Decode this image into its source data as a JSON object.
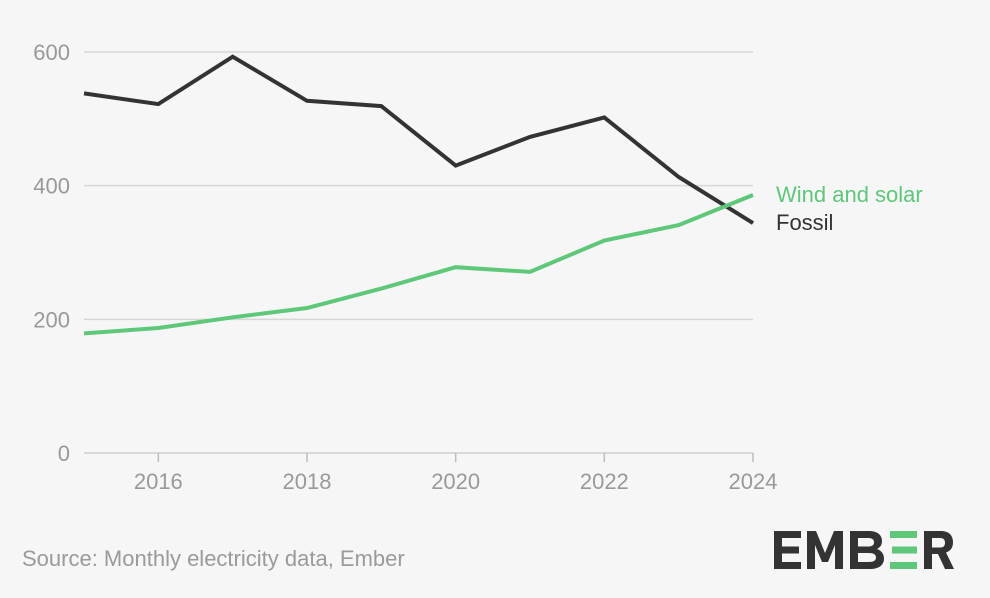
{
  "chart_data": {
    "type": "line",
    "title": "",
    "xlabel": "",
    "ylabel": "",
    "x": [
      2015,
      2016,
      2017,
      2018,
      2019,
      2020,
      2021,
      2022,
      2023,
      2024
    ],
    "xlim": [
      2015,
      2024
    ],
    "ylim": [
      0,
      600
    ],
    "x_ticks": [
      "2016",
      "2018",
      "2020",
      "2022",
      "2024"
    ],
    "y_ticks": [
      "0",
      "200",
      "400",
      "600"
    ],
    "grid": true,
    "legend": "right-end labels",
    "series": [
      {
        "name": "Fossil",
        "color": "#333333",
        "values": [
          538,
          522,
          593,
          527,
          519,
          430,
          473,
          502,
          413,
          344
        ]
      },
      {
        "name": "Wind and solar",
        "color": "#5ec77a",
        "values": [
          179,
          187,
          203,
          217,
          246,
          278,
          271,
          318,
          341,
          386
        ]
      }
    ]
  },
  "footer": {
    "source": "Source: Monthly electricity data, Ember",
    "logo_text": "EMBER",
    "logo_accent_color": "#5ec77a",
    "logo_color": "#333333"
  }
}
